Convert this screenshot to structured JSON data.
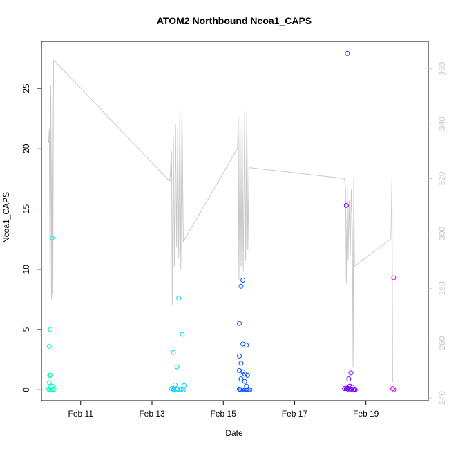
{
  "chart_data": {
    "type": "scatter",
    "title": "ATOM2 Northbound Ncoa1_CAPS",
    "xlabel": "Date",
    "ylabel": "Ncoa1_CAPS",
    "x_ticks": [
      {
        "day": 11,
        "label": "Feb 11"
      },
      {
        "day": 13,
        "label": "Feb 13"
      },
      {
        "day": 15,
        "label": "Feb 15"
      },
      {
        "day": 17,
        "label": "Feb 17"
      },
      {
        "day": 19,
        "label": "Feb 19"
      }
    ],
    "xlim": [
      9.9,
      20.75
    ],
    "ylim": [
      -0.9,
      28.9
    ],
    "y_ticks": [
      0,
      5,
      10,
      15,
      20,
      25
    ],
    "y2_ticks": [
      240,
      260,
      280,
      300,
      320,
      340,
      360
    ],
    "y2lim": [
      239,
      370
    ],
    "grid": false,
    "legend": "none",
    "line_color": "#c8c8c8",
    "series": [
      {
        "color": "#00ffbf",
        "points": [
          [
            10.2,
            12.6
          ],
          [
            10.15,
            5.0
          ],
          [
            10.12,
            3.6
          ],
          [
            10.13,
            1.2
          ],
          [
            10.16,
            1.2
          ],
          [
            10.12,
            0.6
          ],
          [
            10.2,
            0.3
          ],
          [
            10.15,
            0.2
          ],
          [
            10.1,
            0.05
          ],
          [
            10.14,
            0.0
          ],
          [
            10.18,
            0.0
          ],
          [
            10.22,
            0.0
          ],
          [
            10.25,
            0.05
          ]
        ]
      },
      {
        "color": "#00d0ff",
        "points": [
          [
            13.75,
            7.6
          ],
          [
            13.85,
            4.6
          ],
          [
            13.6,
            3.1
          ],
          [
            13.7,
            1.9
          ],
          [
            13.65,
            0.4
          ],
          [
            13.9,
            0.35
          ],
          [
            13.55,
            0.1
          ],
          [
            13.6,
            0.05
          ],
          [
            13.62,
            0.0
          ],
          [
            13.68,
            0.0
          ],
          [
            13.72,
            0.05
          ],
          [
            13.78,
            0.0
          ],
          [
            13.82,
            0.05
          ],
          [
            13.88,
            0.0
          ]
        ]
      },
      {
        "color": "#0052ff",
        "points": [
          [
            15.55,
            9.1
          ],
          [
            15.5,
            8.6
          ],
          [
            15.45,
            5.5
          ],
          [
            15.55,
            3.8
          ],
          [
            15.65,
            3.7
          ],
          [
            15.45,
            2.8
          ],
          [
            15.5,
            2.2
          ],
          [
            15.45,
            1.6
          ],
          [
            15.55,
            1.5
          ],
          [
            15.6,
            1.3
          ],
          [
            15.68,
            1.2
          ],
          [
            15.5,
            0.9
          ],
          [
            15.6,
            0.7
          ],
          [
            15.65,
            0.3
          ],
          [
            15.45,
            0.05
          ],
          [
            15.48,
            0.0
          ],
          [
            15.52,
            0.0
          ],
          [
            15.56,
            0.0
          ],
          [
            15.6,
            0.0
          ],
          [
            15.64,
            0.0
          ],
          [
            15.68,
            0.0
          ],
          [
            15.72,
            0.0
          ],
          [
            15.75,
            0.0
          ]
        ]
      },
      {
        "color": "#6e00ff",
        "points": [
          [
            18.48,
            27.9
          ],
          [
            18.45,
            15.3
          ],
          [
            18.58,
            1.4
          ],
          [
            18.52,
            0.9
          ],
          [
            18.55,
            0.3
          ],
          [
            18.4,
            0.1
          ],
          [
            18.45,
            0.1
          ],
          [
            18.5,
            0.05
          ],
          [
            18.55,
            0.05
          ],
          [
            18.6,
            0.05
          ],
          [
            18.65,
            0.0
          ],
          [
            18.68,
            0.05
          ],
          [
            18.7,
            0.0
          ],
          [
            18.62,
            0.2
          ],
          [
            18.48,
            0.15
          ]
        ]
      },
      {
        "color": "#e000ff",
        "points": [
          [
            19.78,
            9.3
          ],
          [
            19.75,
            0.1
          ],
          [
            19.78,
            0.0
          ]
        ]
      }
    ],
    "line_series": {
      "axis": "right",
      "points": [
        [
          10.1,
          333
        ],
        [
          10.12,
          338
        ],
        [
          10.14,
          282
        ],
        [
          10.16,
          354
        ],
        [
          10.18,
          276
        ],
        [
          10.2,
          352
        ],
        [
          10.22,
          278
        ],
        [
          10.24,
          363
        ],
        [
          10.26,
          363
        ],
        [
          13.5,
          319
        ],
        [
          13.55,
          330
        ],
        [
          13.57,
          274
        ],
        [
          13.6,
          335
        ],
        [
          13.63,
          288
        ],
        [
          13.66,
          340
        ],
        [
          13.69,
          295
        ],
        [
          13.72,
          338
        ],
        [
          13.75,
          291
        ],
        [
          13.78,
          344
        ],
        [
          13.81,
          287
        ],
        [
          13.84,
          346
        ],
        [
          13.88,
          297
        ],
        [
          15.4,
          331
        ],
        [
          15.42,
          342
        ],
        [
          15.44,
          283
        ],
        [
          15.47,
          343
        ],
        [
          15.5,
          288
        ],
        [
          15.53,
          342
        ],
        [
          15.56,
          286
        ],
        [
          15.6,
          344
        ],
        [
          15.63,
          290
        ],
        [
          15.66,
          345
        ],
        [
          15.69,
          294
        ],
        [
          15.72,
          324
        ],
        [
          18.4,
          320
        ],
        [
          18.43,
          316
        ],
        [
          18.45,
          282
        ],
        [
          18.48,
          316
        ],
        [
          18.5,
          290
        ],
        [
          18.53,
          312
        ],
        [
          18.56,
          292
        ],
        [
          18.59,
          316
        ],
        [
          18.62,
          300
        ],
        [
          18.64,
          251
        ],
        [
          18.66,
          320
        ],
        [
          18.68,
          288
        ],
        [
          19.7,
          298
        ],
        [
          19.73,
          320
        ],
        [
          19.75,
          246
        ],
        [
          19.78,
          246
        ]
      ]
    }
  }
}
